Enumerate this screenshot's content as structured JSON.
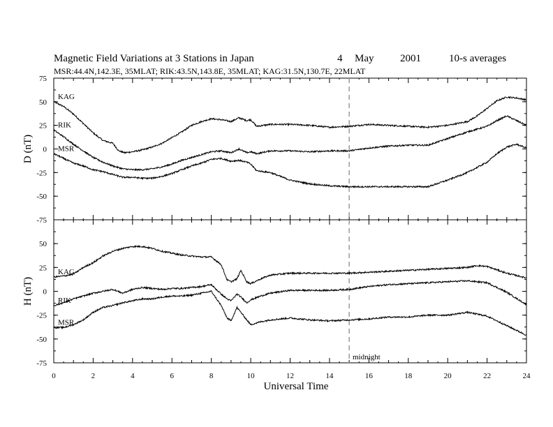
{
  "title": {
    "main": "Magnetic Field Variations at 3 Stations in Japan",
    "day": "4",
    "month": "May",
    "year": "2001",
    "avg": "10-s averages"
  },
  "subtitle": "MSR:44.4N,142.3E, 35MLAT;  RIK:43.5N,143.8E, 35MLAT;  KAG:31.5N,130.7E, 22MLAT",
  "xlabel": "Universal Time",
  "marker_label": "midnight",
  "colors": {
    "line": "#000000",
    "marker": "#999999"
  },
  "chart_data": [
    {
      "type": "line",
      "panel": "D",
      "ylabel": "D (nT)",
      "ylim": [
        -75,
        75
      ],
      "xlim": [
        0,
        24
      ],
      "xticks": [
        "0",
        "2",
        "4",
        "6",
        "8",
        "10",
        "12",
        "14",
        "16",
        "18",
        "20",
        "22",
        "24"
      ],
      "yticks": [
        "75",
        "50",
        "25",
        "0",
        "-25",
        "-50",
        "-75"
      ],
      "vline_x": 15,
      "series": [
        {
          "name": "KAG",
          "x": [
            0,
            0.5,
            1,
            1.5,
            2,
            2.5,
            3,
            3.3,
            3.6,
            4,
            4.5,
            5,
            5.5,
            6,
            6.5,
            7,
            7.5,
            8,
            8.5,
            9,
            9.4,
            9.8,
            10,
            10.3,
            11,
            12,
            13,
            14,
            15,
            16,
            17,
            18,
            19,
            20,
            21,
            21.5,
            22,
            22.5,
            23,
            23.5,
            24
          ],
          "values": [
            50,
            45,
            37,
            27,
            17,
            9,
            6,
            -2,
            -4,
            -3,
            -1,
            2,
            6,
            12,
            18,
            25,
            29,
            32,
            31,
            29,
            33,
            30,
            31,
            24,
            26,
            26,
            25,
            23,
            24,
            26,
            25,
            24,
            23,
            25,
            29,
            35,
            43,
            51,
            55,
            54,
            52
          ]
        },
        {
          "name": "RIK",
          "x": [
            0,
            0.5,
            1,
            1.5,
            2,
            2.5,
            3,
            3.5,
            4,
            4.5,
            5,
            5.5,
            6,
            6.5,
            7,
            7.5,
            8,
            8.5,
            9,
            9.4,
            9.8,
            10,
            10.3,
            11,
            12,
            13,
            14,
            15,
            16,
            17,
            18,
            19,
            20,
            21,
            22,
            22.5,
            23,
            23.5,
            24
          ],
          "values": [
            20,
            13,
            5,
            -2,
            -9,
            -14,
            -18,
            -21,
            -22,
            -22,
            -21,
            -19,
            -16,
            -12,
            -9,
            -6,
            -3,
            -2,
            -4,
            0,
            -4,
            -3,
            -5,
            -2,
            -2,
            -3,
            -2,
            -2,
            1,
            3,
            4,
            4,
            11,
            18,
            24,
            30,
            35,
            30,
            25
          ]
        },
        {
          "name": "MSR",
          "x": [
            0,
            0.5,
            1,
            1.5,
            2,
            2.5,
            3,
            3.5,
            4,
            4.5,
            5,
            5.5,
            6,
            6.5,
            7,
            7.5,
            8,
            8.5,
            9,
            9.4,
            9.8,
            10,
            10.3,
            11,
            12,
            13,
            14,
            15,
            16,
            17,
            18,
            19,
            20,
            21,
            22,
            22.5,
            23,
            23.5,
            24
          ],
          "values": [
            -5,
            -10,
            -15,
            -18,
            -22,
            -24,
            -27,
            -30,
            -30,
            -31,
            -31,
            -29,
            -26,
            -22,
            -18,
            -15,
            -11,
            -10,
            -13,
            -12,
            -14,
            -16,
            -23,
            -25,
            -33,
            -37,
            -39,
            -40,
            -40,
            -40,
            -40,
            -40,
            -33,
            -25,
            -14,
            -5,
            2,
            5,
            1
          ]
        }
      ]
    },
    {
      "type": "line",
      "panel": "H",
      "ylabel": "H (nT)",
      "ylim": [
        -75,
        75
      ],
      "xlim": [
        0,
        24
      ],
      "xticks": [
        "0",
        "2",
        "4",
        "6",
        "8",
        "10",
        "12",
        "14",
        "16",
        "18",
        "20",
        "22",
        "24"
      ],
      "yticks": [
        "75",
        "50",
        "25",
        "0",
        "-25",
        "-50",
        "-75"
      ],
      "vline_x": 15,
      "series": [
        {
          "name": "KAG",
          "x": [
            0,
            0.5,
            1,
            1.5,
            2,
            2.5,
            3,
            3.5,
            4,
            4.5,
            5,
            5.5,
            6,
            6.5,
            7,
            7.5,
            8,
            8.5,
            8.8,
            9,
            9.3,
            9.5,
            9.8,
            10,
            10.5,
            11,
            12,
            13,
            14,
            15,
            16,
            17,
            18,
            19,
            20,
            21,
            21.5,
            22,
            23,
            24
          ],
          "values": [
            15,
            16,
            18,
            25,
            30,
            37,
            42,
            45,
            47,
            47,
            45,
            42,
            40,
            38,
            37,
            36,
            36,
            28,
            12,
            10,
            13,
            22,
            10,
            8,
            13,
            17,
            19,
            19,
            19,
            19,
            20,
            21,
            22,
            23,
            24,
            25,
            27,
            26,
            19,
            14
          ]
        },
        {
          "name": "RIK",
          "x": [
            0,
            0.5,
            1,
            1.5,
            2,
            2.5,
            3,
            3.5,
            4,
            4.5,
            5,
            5.5,
            6,
            6.5,
            7,
            7.5,
            8,
            8.5,
            8.8,
            9,
            9.3,
            9.5,
            9.8,
            10,
            10.5,
            11,
            12,
            13,
            14,
            15,
            16,
            17,
            18,
            19,
            20,
            21,
            22,
            23,
            24
          ],
          "values": [
            -15,
            -12,
            -8,
            -5,
            -2,
            0,
            2,
            -2,
            2,
            4,
            3,
            2,
            3,
            3,
            4,
            5,
            7,
            -3,
            -8,
            -10,
            -3,
            -6,
            -12,
            -9,
            -5,
            -2,
            1,
            1,
            1,
            2,
            5,
            7,
            8,
            9,
            10,
            11,
            9,
            -1,
            -14
          ]
        },
        {
          "name": "MSR",
          "x": [
            0,
            0.5,
            1,
            1.5,
            2,
            2.5,
            3,
            3.5,
            4,
            4.5,
            5,
            5.5,
            6,
            6.5,
            7,
            7.5,
            8,
            8.5,
            8.8,
            9,
            9.3,
            9.5,
            9.8,
            10,
            10.5,
            11,
            12,
            13,
            14,
            15,
            16,
            17,
            18,
            19,
            20,
            21,
            22,
            23,
            24
          ],
          "values": [
            -38,
            -38,
            -35,
            -30,
            -22,
            -17,
            -15,
            -12,
            -10,
            -8,
            -8,
            -6,
            -5,
            -5,
            -4,
            -2,
            0,
            -15,
            -28,
            -31,
            -17,
            -22,
            -30,
            -35,
            -32,
            -30,
            -28,
            -30,
            -31,
            -30,
            -29,
            -27,
            -27,
            -25,
            -25,
            -22,
            -26,
            -36,
            -46
          ]
        }
      ]
    }
  ]
}
